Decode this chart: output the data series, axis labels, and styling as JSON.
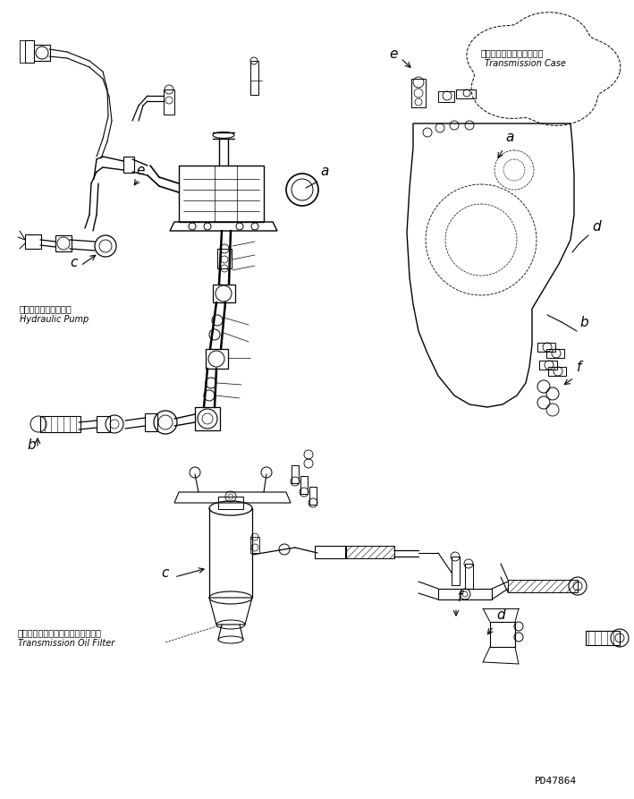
{
  "bg_color": "#ffffff",
  "line_color": "#000000",
  "fig_width": 7.09,
  "fig_height": 8.93,
  "dpi": 100,
  "part_code": "PD47864",
  "labels": {
    "hydraulic_pump_jp": "ハイドロリックポンプ",
    "hydraulic_pump_en": "Hydraulic Pump",
    "transmission_filter_jp": "トランスミッションオイルフィルタ",
    "transmission_filter_en": "Transmission Oil Filter",
    "transmission_case_jp": "トランスミッションケース",
    "transmission_case_en": "Transmission Case"
  }
}
